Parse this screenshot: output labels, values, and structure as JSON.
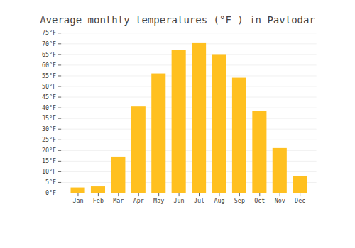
{
  "chart_data": {
    "type": "bar",
    "title": "Average monthly temperatures (°F ) in Pavlodar",
    "categories": [
      "Jan",
      "Feb",
      "Mar",
      "Apr",
      "May",
      "Jun",
      "Jul",
      "Aug",
      "Sep",
      "Oct",
      "Nov",
      "Dec"
    ],
    "values": [
      2.5,
      3.0,
      17.0,
      40.5,
      56.0,
      67.0,
      70.5,
      65.0,
      54.0,
      38.5,
      21.0,
      8.0
    ],
    "color": "#FFC020",
    "ylim": [
      0,
      75
    ],
    "yticks": [
      {
        "value": 0,
        "label": "0°F"
      },
      {
        "value": 5,
        "label": "5°F"
      },
      {
        "value": 10,
        "label": "10°F"
      },
      {
        "value": 15,
        "label": "15°F"
      },
      {
        "value": 20,
        "label": "20°F"
      },
      {
        "value": 25,
        "label": "25°F"
      },
      {
        "value": 30,
        "label": "30°F"
      },
      {
        "value": 35,
        "label": "35°F"
      },
      {
        "value": 40,
        "label": "40°F"
      },
      {
        "value": 45,
        "label": "45°F"
      },
      {
        "value": 50,
        "label": "50°F"
      },
      {
        "value": 55,
        "label": "55°F"
      },
      {
        "value": 60,
        "label": "60°F"
      },
      {
        "value": 65,
        "label": "65°F"
      },
      {
        "value": 70,
        "label": "70°F"
      },
      {
        "value": 75,
        "label": "75°F"
      }
    ],
    "grid": true
  }
}
